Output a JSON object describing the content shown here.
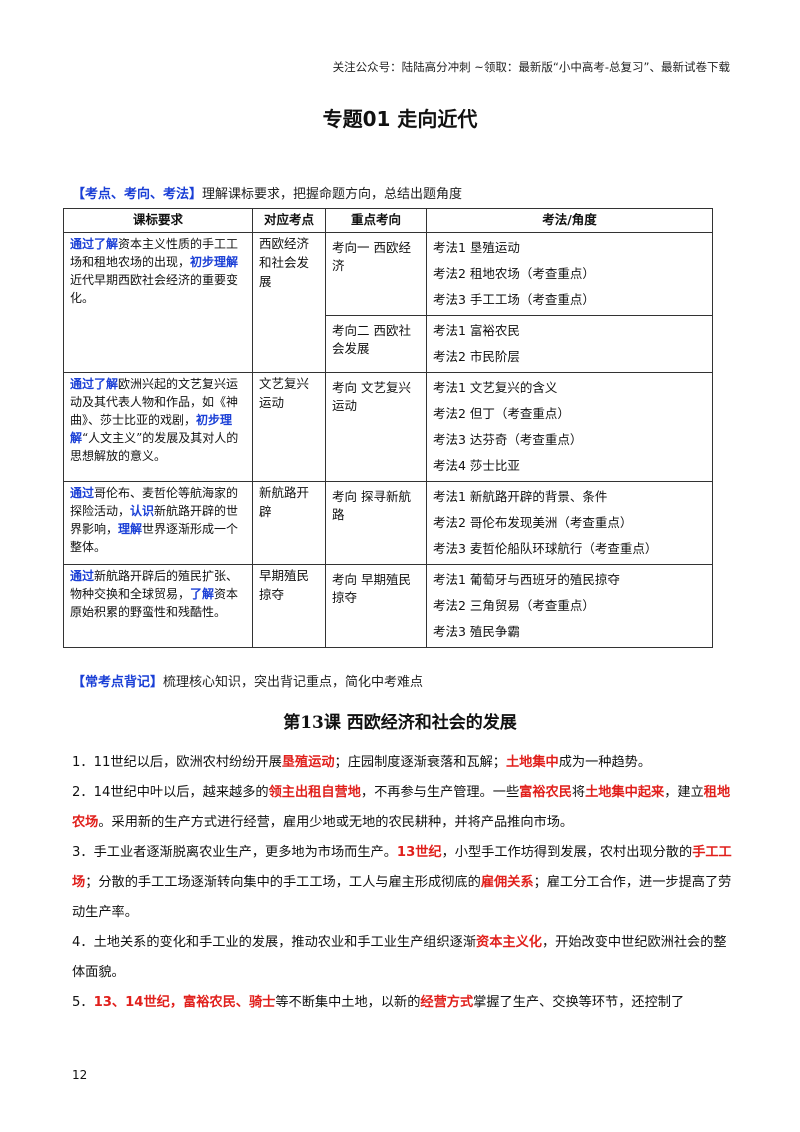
{
  "header_note": "关注公众号：陆陆高分冲刺 ~领取：最新版“小中高考-总复习”、最新试卷下载",
  "title": "专题01  走向近代",
  "section1": {
    "tag": "【考点、考向、考法】",
    "desc": "理解课标要求，把握命题方向，总结出题角度"
  },
  "table": {
    "headers": [
      "课标要求",
      "对应考点",
      "重点考向",
      "考法/角度"
    ],
    "rows": [
      {
        "req": [
          [
            "lead",
            "通过了解"
          ],
          [
            "t",
            "资本主义性质的手工工场和租地农场的出现，"
          ],
          [
            "lead",
            "初步理解"
          ],
          [
            "t",
            "近代早期西欧社会经济的重要变化。"
          ]
        ],
        "point": "西欧经济和社会发展",
        "dirs": [
          {
            "label": "考向一  西欧经济",
            "methods": [
              "考法1  垦殖运动",
              "考法2  租地农场（考查重点）",
              "考法3  手工工场（考查重点）"
            ]
          },
          {
            "label": "考向二  西欧社会发展",
            "methods": [
              "考法1  富裕农民",
              "考法2  市民阶层"
            ]
          }
        ]
      },
      {
        "req": [
          [
            "lead",
            "通过了解"
          ],
          [
            "t",
            "欧洲兴起的文艺复兴运动及其代表人物和作品，如《神曲》、莎士比亚的戏剧，"
          ],
          [
            "lead",
            "初步理解"
          ],
          [
            "t",
            "“人文主义”的发展及其对人的思想解放的意义。"
          ]
        ],
        "point": "文艺复兴运动",
        "dirs": [
          {
            "label": "考向  文艺复兴运动",
            "methods": [
              "考法1  文艺复兴的含义",
              "考法2  但丁（考查重点）",
              "考法3  达芬奇（考查重点）",
              "考法4  莎士比亚"
            ]
          }
        ]
      },
      {
        "req": [
          [
            "lead",
            "通过"
          ],
          [
            "t",
            "哥伦布、麦哲伦等航海家的探险活动，"
          ],
          [
            "lead",
            "认识"
          ],
          [
            "t",
            "新航路开辟的世界影响，"
          ],
          [
            "lead",
            "理解"
          ],
          [
            "t",
            "世界逐渐形成一个整体。"
          ]
        ],
        "point": "新航路开辟",
        "dirs": [
          {
            "label": "考向  探寻新航路",
            "methods": [
              "考法1  新航路开辟的背景、条件",
              "考法2  哥伦布发现美洲（考查重点）",
              "考法3  麦哲伦船队环球航行（考查重点）"
            ]
          }
        ]
      },
      {
        "req": [
          [
            "lead",
            "通过"
          ],
          [
            "t",
            "新航路开辟后的殖民扩张、物种交换和全球贸易，"
          ],
          [
            "lead",
            "了解"
          ],
          [
            "t",
            "资本原始积累的野蛮性和残酷性。"
          ]
        ],
        "point": "早期殖民掠夺",
        "dirs": [
          {
            "label": "考向  早期殖民掠夺",
            "methods": [
              "考法1  葡萄牙与西班牙的殖民掠夺",
              "考法2  三角贸易（考查重点）",
              "考法3  殖民争霸"
            ]
          }
        ]
      }
    ]
  },
  "section2": {
    "tag": "【常考点背记】",
    "desc": "梳理核心知识，突出背记重点，简化中考难点"
  },
  "lesson_title": "第13课    西欧经济和社会的发展",
  "paragraphs": [
    [
      [
        "t",
        "1．11世纪以后，欧洲农村纷纷开展"
      ],
      [
        "h",
        "垦殖运动"
      ],
      [
        "t",
        "；庄园制度逐渐衰落和瓦解；"
      ],
      [
        "h",
        "土地集中"
      ],
      [
        "t",
        "成为一种趋势。"
      ]
    ],
    [
      [
        "t",
        "2．14世纪中叶以后，越来越多的"
      ],
      [
        "h",
        "领主出租自营地"
      ],
      [
        "t",
        "，不再参与生产管理。一些"
      ],
      [
        "h",
        "富裕农民"
      ],
      [
        "t",
        "将"
      ],
      [
        "h",
        "土地集中起来"
      ],
      [
        "t",
        "，建立"
      ],
      [
        "h",
        "租地农场"
      ],
      [
        "t",
        "。采用新的生产方式进行经营，雇用少地或无地的农民耕种，并将产品推向市场。"
      ]
    ],
    [
      [
        "t",
        "3．手工业者逐渐脱离农业生产，更多地为市场而生产。"
      ],
      [
        "h",
        "13世纪"
      ],
      [
        "t",
        "，小型手工作坊得到发展，农村出现分散的"
      ],
      [
        "h",
        "手工工场"
      ],
      [
        "t",
        "；分散的手工工场逐渐转向集中的手工工场，工人与雇主形成彻底的"
      ],
      [
        "h",
        "雇佣关系"
      ],
      [
        "t",
        "；雇工分工合作，进一步提高了劳动生产率。"
      ]
    ],
    [
      [
        "t",
        "4．土地关系的变化和手工业的发展，推动农业和手工业生产组织逐渐"
      ],
      [
        "h",
        "资本主义化"
      ],
      [
        "t",
        "，开始改变中世纪欧洲社会的整体面貌。"
      ]
    ],
    [
      [
        "t",
        "5．"
      ],
      [
        "h",
        "13、14世纪，富裕农民、骑士"
      ],
      [
        "t",
        "等不断集中土地，以新的"
      ],
      [
        "h",
        "经营方式"
      ],
      [
        "t",
        "掌握了生产、交换等环节，还控制了"
      ]
    ]
  ],
  "page_number": "12"
}
